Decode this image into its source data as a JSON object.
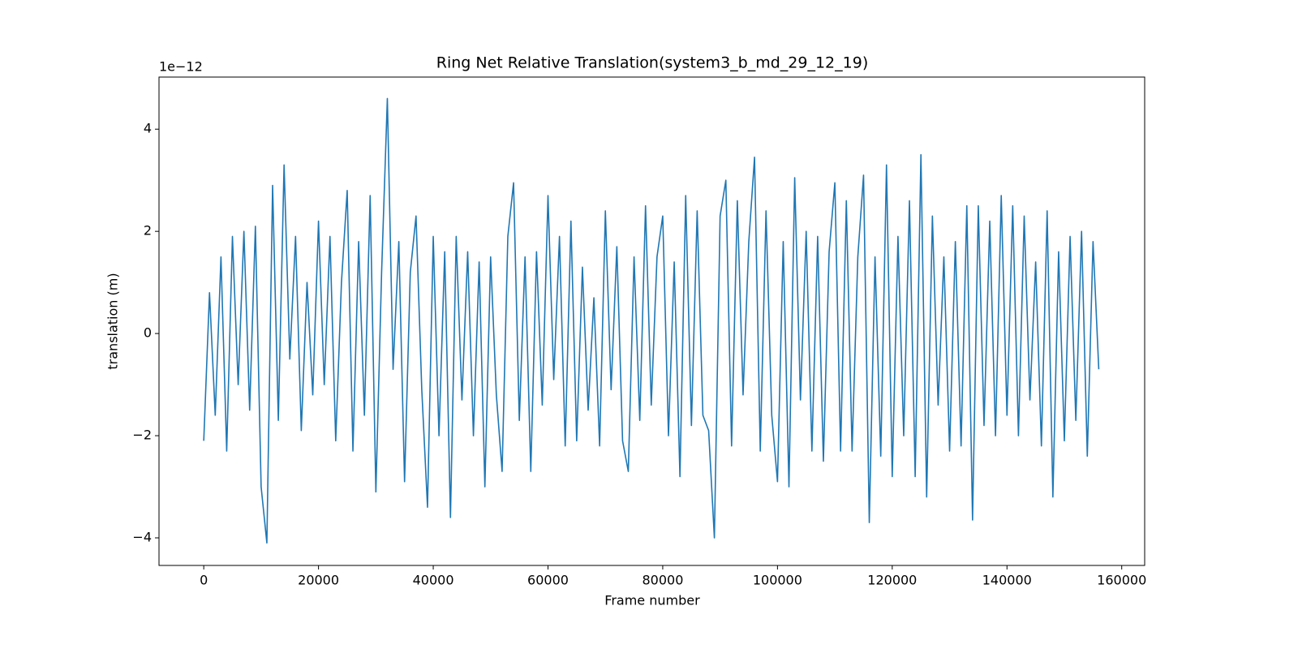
{
  "chart_data": {
    "type": "line",
    "title": "Ring Net Relative Translation(system3_b_md_29_12_19)",
    "x_label": "Frame number",
    "y_label": "translation (m)",
    "y_offset_label": "1e−12",
    "xlim": [
      -7800,
      164000
    ],
    "ylim": [
      -4.54,
      5.02
    ],
    "xticks": [
      0,
      20000,
      40000,
      60000,
      80000,
      100000,
      120000,
      140000,
      160000
    ],
    "yticks": [
      {
        "value": -4,
        "label": "−4"
      },
      {
        "value": -2,
        "label": "−2"
      },
      0,
      2,
      4
    ],
    "x": [
      0,
      1000,
      2000,
      3000,
      4000,
      5000,
      6000,
      7000,
      8000,
      9000,
      10000,
      11000,
      12000,
      13000,
      14000,
      15000,
      16000,
      17000,
      18000,
      19000,
      20000,
      21000,
      22000,
      23000,
      24000,
      25000,
      26000,
      27000,
      28000,
      29000,
      30000,
      31000,
      32000,
      33000,
      34000,
      35000,
      36000,
      37000,
      38000,
      39000,
      40000,
      41000,
      42000,
      43000,
      44000,
      45000,
      46000,
      47000,
      48000,
      49000,
      50000,
      51000,
      52000,
      53000,
      54000,
      55000,
      56000,
      57000,
      58000,
      59000,
      60000,
      61000,
      62000,
      63000,
      64000,
      65000,
      66000,
      67000,
      68000,
      69000,
      70000,
      71000,
      72000,
      73000,
      74000,
      75000,
      76000,
      77000,
      78000,
      79000,
      80000,
      81000,
      82000,
      83000,
      84000,
      85000,
      86000,
      87000,
      88000,
      89000,
      90000,
      91000,
      92000,
      93000,
      94000,
      95000,
      96000,
      97000,
      98000,
      99000,
      100000,
      101000,
      102000,
      103000,
      104000,
      105000,
      106000,
      107000,
      108000,
      109000,
      110000,
      111000,
      112000,
      113000,
      114000,
      115000,
      116000,
      117000,
      118000,
      119000,
      120000,
      121000,
      122000,
      123000,
      124000,
      125000,
      126000,
      127000,
      128000,
      129000,
      130000,
      131000,
      132000,
      133000,
      134000,
      135000,
      136000,
      137000,
      138000,
      139000,
      140000,
      141000,
      142000,
      143000,
      144000,
      145000,
      146000,
      147000,
      148000,
      149000,
      150000,
      151000,
      152000,
      153000,
      154000,
      155000,
      156000
    ],
    "series": [
      {
        "color": "#1f77b4",
        "values": [
          -2.1,
          0.8,
          -1.6,
          1.5,
          -2.3,
          1.9,
          -1.0,
          2.0,
          -1.5,
          2.1,
          -3.0,
          -4.1,
          2.9,
          -1.7,
          3.3,
          -0.5,
          1.9,
          -1.9,
          1.0,
          -1.2,
          2.2,
          -1.0,
          1.9,
          -2.1,
          1.0,
          2.8,
          -2.3,
          1.8,
          -1.6,
          2.7,
          -3.1,
          1.2,
          4.6,
          -0.7,
          1.8,
          -2.9,
          1.2,
          2.3,
          -1.1,
          -3.4,
          1.9,
          -2.0,
          1.6,
          -3.6,
          1.9,
          -1.3,
          1.6,
          -2.0,
          1.4,
          -3.0,
          1.5,
          -1.2,
          -2.7,
          1.9,
          2.95,
          -1.7,
          1.5,
          -2.7,
          1.6,
          -1.4,
          2.7,
          -0.9,
          1.9,
          -2.2,
          2.2,
          -2.1,
          1.3,
          -1.5,
          0.7,
          -2.2,
          2.4,
          -1.1,
          1.7,
          -2.1,
          -2.7,
          1.5,
          -1.7,
          2.5,
          -1.4,
          1.5,
          2.3,
          -2.0,
          1.4,
          -2.8,
          2.7,
          -1.8,
          2.4,
          -1.6,
          -1.9,
          -4.0,
          2.3,
          3.0,
          -2.2,
          2.6,
          -1.2,
          1.8,
          3.45,
          -2.3,
          2.4,
          -1.6,
          -2.9,
          1.8,
          -3.0,
          3.05,
          -1.3,
          2.0,
          -2.3,
          1.9,
          -2.5,
          1.6,
          2.95,
          -2.3,
          2.6,
          -2.3,
          1.5,
          3.1,
          -3.7,
          1.5,
          -2.4,
          3.3,
          -2.8,
          1.9,
          -2.0,
          2.6,
          -2.8,
          3.5,
          -3.2,
          2.3,
          -1.4,
          1.5,
          -2.3,
          1.8,
          -2.2,
          2.5,
          -3.65,
          2.5,
          -1.8,
          2.2,
          -2.0,
          2.7,
          -1.6,
          2.5,
          -2.0,
          2.3,
          -1.3,
          1.4,
          -2.2,
          2.4,
          -3.2,
          1.6,
          -2.1,
          1.9,
          -1.7,
          2.0,
          -2.4,
          1.8,
          -0.7
        ]
      }
    ]
  }
}
